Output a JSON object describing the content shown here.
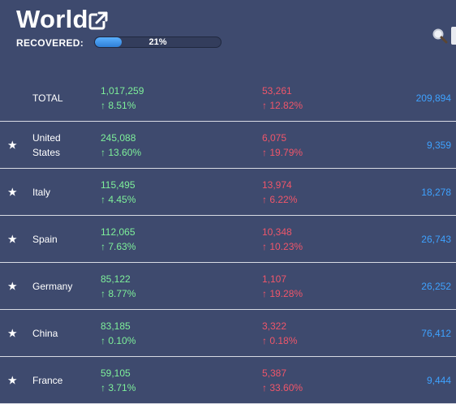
{
  "header": {
    "title": "World",
    "recovered_label": "RECOVERED:",
    "recovered_percent": 21,
    "recovered_percent_text": "21%"
  },
  "colors": {
    "background": "#3e4a6e",
    "cases": "#7ef09a",
    "deaths": "#f0566a",
    "recovered": "#3ea2ff",
    "progress_fill": "#3f94ee"
  },
  "icons": {
    "external_link": "external-link-icon",
    "search": "search-icon",
    "favorite": "star-icon"
  },
  "total": {
    "label": "TOTAL",
    "cases": "1,017,259",
    "cases_change": "↑ 8.51%",
    "deaths": "53,261",
    "deaths_change": "↑ 12.82%",
    "recovered": "209,894"
  },
  "countries": [
    {
      "star": "★",
      "name": "United States",
      "cases": "245,088",
      "cases_change": "↑ 13.60%",
      "deaths": "6,075",
      "deaths_change": "↑ 19.79%",
      "recovered": "9,359"
    },
    {
      "star": "★",
      "name": "Italy",
      "cases": "115,495",
      "cases_change": "↑ 4.45%",
      "deaths": "13,974",
      "deaths_change": "↑ 6.22%",
      "recovered": "18,278"
    },
    {
      "star": "★",
      "name": "Spain",
      "cases": "112,065",
      "cases_change": "↑ 7.63%",
      "deaths": "10,348",
      "deaths_change": "↑ 10.23%",
      "recovered": "26,743"
    },
    {
      "star": "★",
      "name": "Germany",
      "cases": "85,122",
      "cases_change": "↑ 8.77%",
      "deaths": "1,107",
      "deaths_change": "↑ 19.28%",
      "recovered": "26,252"
    },
    {
      "star": "★",
      "name": "China",
      "cases": "83,185",
      "cases_change": "↑ 0.10%",
      "deaths": "3,322",
      "deaths_change": "↑ 0.18%",
      "recovered": "76,412"
    },
    {
      "star": "★",
      "name": "France",
      "cases": "59,105",
      "cases_change": "↑ 3.71%",
      "deaths": "5,387",
      "deaths_change": "↑ 33.60%",
      "recovered": "9,444"
    }
  ]
}
